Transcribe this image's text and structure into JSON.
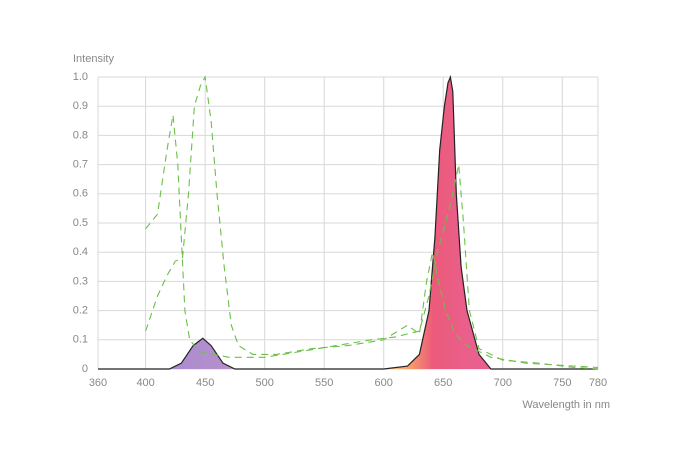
{
  "chart_data": {
    "type": "line",
    "xlabel": "Wavelength in nm",
    "ylabel": "Intensity",
    "xlim": [
      360,
      780
    ],
    "ylim": [
      0,
      1
    ],
    "xticks": [
      360,
      400,
      450,
      500,
      550,
      600,
      650,
      700,
      750,
      780
    ],
    "yticks": [
      0,
      0.1,
      0.2,
      0.3,
      0.4,
      0.5,
      0.6,
      0.7,
      0.8,
      0.9,
      {
        "value": 1,
        "label": "1.0"
      }
    ],
    "grid": true,
    "series": [
      {
        "color": "#222222",
        "filled": true,
        "dashed": false,
        "x": [
          360,
          420,
          430,
          440,
          448,
          455,
          465,
          475,
          600,
          620,
          630,
          638,
          643,
          647,
          651,
          654,
          656,
          658,
          661,
          665,
          670,
          680,
          690,
          780
        ],
        "values": [
          0,
          0,
          0.02,
          0.08,
          0.105,
          0.08,
          0.02,
          0,
          0,
          0.01,
          0.05,
          0.2,
          0.45,
          0.75,
          0.9,
          0.98,
          1.0,
          0.95,
          0.6,
          0.35,
          0.2,
          0.05,
          0,
          0
        ]
      },
      {
        "color": "#6cbf4a",
        "filled": false,
        "dashed": true,
        "x": [
          400,
          410,
          418,
          423,
          427,
          430,
          433,
          437,
          445,
          470,
          500,
          530,
          560,
          590,
          610,
          630,
          638,
          645,
          652,
          658,
          663,
          667,
          672,
          680,
          700,
          730,
          760,
          780
        ],
        "values": [
          0.48,
          0.53,
          0.75,
          0.87,
          0.7,
          0.45,
          0.2,
          0.1,
          0.06,
          0.04,
          0.04,
          0.06,
          0.08,
          0.1,
          0.11,
          0.13,
          0.25,
          0.4,
          0.5,
          0.6,
          0.7,
          0.5,
          0.2,
          0.07,
          0.03,
          0.02,
          0.005,
          0
        ]
      },
      {
        "color": "#6cbf4a",
        "filled": false,
        "dashed": true,
        "x": [
          400,
          410,
          418,
          425,
          431,
          436,
          441,
          446,
          450,
          455,
          460,
          466,
          472,
          478,
          490,
          510,
          540,
          570,
          600,
          620,
          630,
          636,
          641,
          646,
          652,
          660,
          670,
          690,
          720,
          780
        ],
        "values": [
          0.13,
          0.25,
          0.32,
          0.37,
          0.38,
          0.6,
          0.9,
          0.97,
          1.0,
          0.85,
          0.6,
          0.35,
          0.15,
          0.08,
          0.05,
          0.05,
          0.07,
          0.08,
          0.1,
          0.15,
          0.12,
          0.3,
          0.4,
          0.3,
          0.2,
          0.12,
          0.08,
          0.04,
          0.02,
          0.005
        ]
      }
    ]
  }
}
